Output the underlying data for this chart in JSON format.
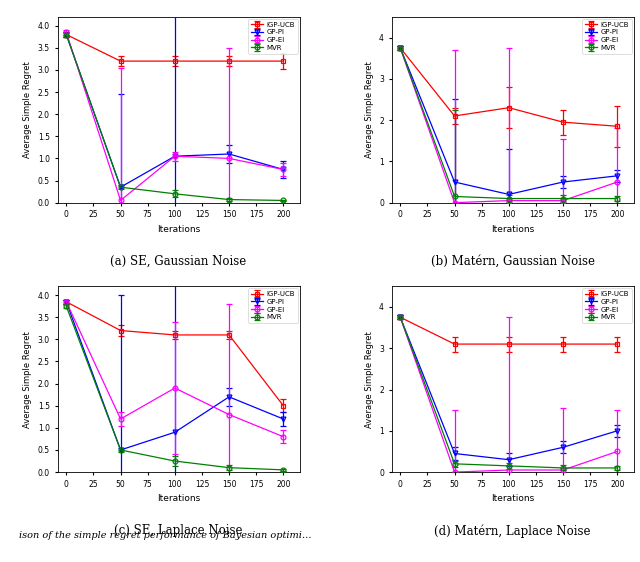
{
  "subplot_titles": [
    "(a) SE, Gaussian Noise",
    "(b) Matérn, Gaussian Noise",
    "(c) SE, Laplace Noise",
    "(d) Matérn, Laplace Noise"
  ],
  "ylabel": "Average Simple Regret",
  "xlabel": "Iterations",
  "legend_labels": [
    "IGP-UCB",
    "GP-PI",
    "GP-EI",
    "MVR"
  ],
  "colors": [
    "red",
    "blue",
    "magenta",
    "green"
  ],
  "markers": [
    "s",
    "v",
    "o",
    "o"
  ],
  "x_pts": [
    0,
    50,
    100,
    150,
    200
  ],
  "subplot_a": {
    "IGP_UCB_y": [
      3.8,
      3.2,
      3.2,
      3.2,
      3.2
    ],
    "IGP_UCB_err": [
      0.05,
      0.12,
      0.12,
      0.12,
      0.18
    ],
    "GP_PI_y": [
      3.8,
      0.35,
      1.05,
      1.1,
      0.75
    ],
    "GP_PI_err": [
      0.05,
      2.1,
      3.8,
      0.2,
      0.2
    ],
    "GP_EI_y": [
      3.85,
      0.05,
      1.05,
      1.0,
      0.75
    ],
    "GP_EI_err": [
      0.05,
      3.0,
      0.1,
      2.5,
      0.15
    ],
    "MVR_y": [
      3.8,
      0.35,
      0.2,
      0.07,
      0.05
    ],
    "MVR_err": [
      0.05,
      0.05,
      0.08,
      0.03,
      0.02
    ],
    "ylim": [
      0.0,
      4.2
    ],
    "yticks": [
      0.0,
      0.5,
      1.0,
      1.5,
      2.0,
      2.5,
      3.0,
      3.5,
      4.0
    ]
  },
  "subplot_b": {
    "IGP_UCB_y": [
      3.75,
      2.1,
      2.3,
      1.95,
      1.85
    ],
    "IGP_UCB_err": [
      0.05,
      0.2,
      0.5,
      0.3,
      0.5
    ],
    "GP_PI_y": [
      3.75,
      0.5,
      0.2,
      0.5,
      0.65
    ],
    "GP_PI_err": [
      0.05,
      2.0,
      1.1,
      0.15,
      0.15
    ],
    "GP_EI_y": [
      3.75,
      0.0,
      0.05,
      0.05,
      0.5
    ],
    "GP_EI_err": [
      0.05,
      3.7,
      3.7,
      1.5,
      1.3
    ],
    "MVR_y": [
      3.75,
      0.15,
      0.1,
      0.1,
      0.1
    ],
    "MVR_err": [
      0.05,
      2.1,
      0.08,
      0.08,
      0.05
    ],
    "ylim": [
      0.0,
      4.5
    ],
    "yticks": [
      0,
      1,
      2,
      3,
      4
    ]
  },
  "subplot_c": {
    "IGP_UCB_y": [
      3.85,
      3.2,
      3.1,
      3.1,
      1.5
    ],
    "IGP_UCB_err": [
      0.05,
      0.12,
      0.1,
      0.1,
      0.15
    ],
    "GP_PI_y": [
      3.85,
      0.5,
      0.9,
      1.7,
      1.2
    ],
    "GP_PI_err": [
      0.05,
      3.5,
      3.5,
      0.2,
      0.15
    ],
    "GP_EI_y": [
      3.85,
      1.2,
      1.9,
      1.3,
      0.8
    ],
    "GP_EI_err": [
      0.05,
      0.15,
      1.5,
      2.5,
      0.15
    ],
    "MVR_y": [
      3.75,
      0.5,
      0.25,
      0.1,
      0.05
    ],
    "MVR_err": [
      0.05,
      0.05,
      0.12,
      0.05,
      0.02
    ],
    "ylim": [
      0.0,
      4.2
    ],
    "yticks": [
      0.0,
      0.5,
      1.0,
      1.5,
      2.0,
      2.5,
      3.0,
      3.5,
      4.0
    ]
  },
  "subplot_d": {
    "IGP_UCB_y": [
      3.75,
      3.1,
      3.1,
      3.1,
      3.1
    ],
    "IGP_UCB_err": [
      0.05,
      0.18,
      0.18,
      0.18,
      0.18
    ],
    "GP_PI_y": [
      3.75,
      0.45,
      0.3,
      0.6,
      1.0
    ],
    "GP_PI_err": [
      0.05,
      0.15,
      0.15,
      0.15,
      0.15
    ],
    "GP_EI_y": [
      3.75,
      0.0,
      0.05,
      0.05,
      0.5
    ],
    "GP_EI_err": [
      0.05,
      1.5,
      3.7,
      1.5,
      1.0
    ],
    "MVR_y": [
      3.75,
      0.2,
      0.15,
      0.1,
      0.1
    ],
    "MVR_err": [
      0.05,
      0.08,
      0.08,
      0.06,
      0.04
    ],
    "ylim": [
      0.0,
      4.5
    ],
    "yticks": [
      0,
      1,
      2,
      3,
      4
    ]
  },
  "bottom_caption": "ison of the simple regret performance of Bayesian optimi..."
}
